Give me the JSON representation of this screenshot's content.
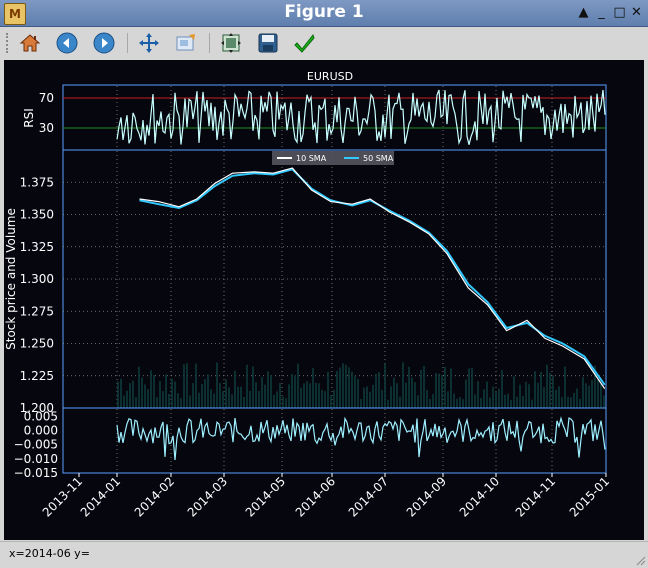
{
  "window": {
    "title": "Figure 1",
    "app_icon": "M",
    "min_glyph": "_",
    "max_glyph": "□",
    "close_glyph": "✕",
    "restore_glyph": "▲"
  },
  "toolbar": {
    "buttons": [
      {
        "name": "home",
        "icon": "home-icon"
      },
      {
        "name": "back",
        "icon": "back-arrow-icon"
      },
      {
        "name": "forward",
        "icon": "forward-arrow-icon"
      },
      {
        "name": "pan",
        "icon": "move-icon"
      },
      {
        "name": "zoom",
        "icon": "zoom-rect-icon"
      },
      {
        "name": "subplots",
        "icon": "subplots-icon"
      },
      {
        "name": "save",
        "icon": "floppy-icon"
      },
      {
        "name": "edit",
        "icon": "checkmark-icon"
      }
    ]
  },
  "status": {
    "text": "x=2014-06 y="
  },
  "colors": {
    "bg": "#06060f",
    "axes": "#5aa0ff",
    "price": "#ffffff",
    "sma10": "#ffffff",
    "sma50": "#30c8ff",
    "rsi": "#c8ffff",
    "macd": "#9ef0ff",
    "grid": "#888888"
  },
  "chart_data": [
    {
      "type": "line",
      "title": "EURUSD",
      "ylabel": "RSI",
      "yticks": [
        "70",
        "30"
      ],
      "hlines": [
        {
          "y": 70,
          "color": "#c81e1e"
        },
        {
          "y": 30,
          "color": "#1e8c1e"
        }
      ],
      "ylim": [
        0,
        100
      ]
    },
    {
      "type": "line",
      "ylabel": "Stock price and Volume",
      "yticks": [
        "1.375",
        "1.350",
        "1.325",
        "1.300",
        "1.275",
        "1.250",
        "1.225",
        "1.200"
      ],
      "ylim": [
        1.2,
        1.4
      ],
      "legend_position": "top-center",
      "series": [
        {
          "name": "10 SMA",
          "x": [
            "2013-12-31",
            "2014-01-15",
            "2014-01-31",
            "2014-02-14",
            "2014-02-28",
            "2014-03-14",
            "2014-03-31",
            "2014-04-15",
            "2014-04-30",
            "2014-05-15",
            "2014-05-30",
            "2014-06-16",
            "2014-06-30",
            "2014-07-15",
            "2014-07-31",
            "2014-08-15",
            "2014-08-29",
            "2014-09-15",
            "2014-09-30",
            "2014-10-15",
            "2014-10-31",
            "2014-11-14",
            "2014-11-28",
            "2014-12-15",
            "2014-12-31"
          ],
          "values": [
            1.362,
            1.36,
            1.356,
            1.362,
            1.374,
            1.382,
            1.383,
            1.382,
            1.386,
            1.369,
            1.36,
            1.358,
            1.362,
            1.352,
            1.344,
            1.335,
            1.32,
            1.293,
            1.28,
            1.26,
            1.268,
            1.254,
            1.248,
            1.238,
            1.215
          ]
        },
        {
          "name": "50 SMA",
          "x": [
            "2013-12-31",
            "2014-01-15",
            "2014-01-31",
            "2014-02-14",
            "2014-02-28",
            "2014-03-14",
            "2014-03-31",
            "2014-04-15",
            "2014-04-30",
            "2014-05-15",
            "2014-05-30",
            "2014-06-16",
            "2014-06-30",
            "2014-07-15",
            "2014-07-31",
            "2014-08-15",
            "2014-08-29",
            "2014-09-15",
            "2014-09-30",
            "2014-10-15",
            "2014-10-31",
            "2014-11-14",
            "2014-11-28",
            "2014-12-15",
            "2014-12-31"
          ],
          "values": [
            1.361,
            1.358,
            1.355,
            1.361,
            1.372,
            1.38,
            1.382,
            1.381,
            1.385,
            1.37,
            1.361,
            1.357,
            1.361,
            1.353,
            1.345,
            1.336,
            1.322,
            1.296,
            1.282,
            1.262,
            1.266,
            1.256,
            1.25,
            1.24,
            1.218
          ]
        }
      ]
    },
    {
      "type": "line",
      "yticks": [
        "0.005",
        "0.000",
        "−0.005",
        "−0.010",
        "−0.015"
      ],
      "ylim": [
        -0.015,
        0.008
      ]
    }
  ],
  "xaxis": {
    "ticks": [
      "2013-11",
      "2014-01",
      "2014-02",
      "2014-03",
      "2014-05",
      "2014-06",
      "2014-07",
      "2014-09",
      "2014-10",
      "2014-11",
      "2015-01"
    ]
  }
}
